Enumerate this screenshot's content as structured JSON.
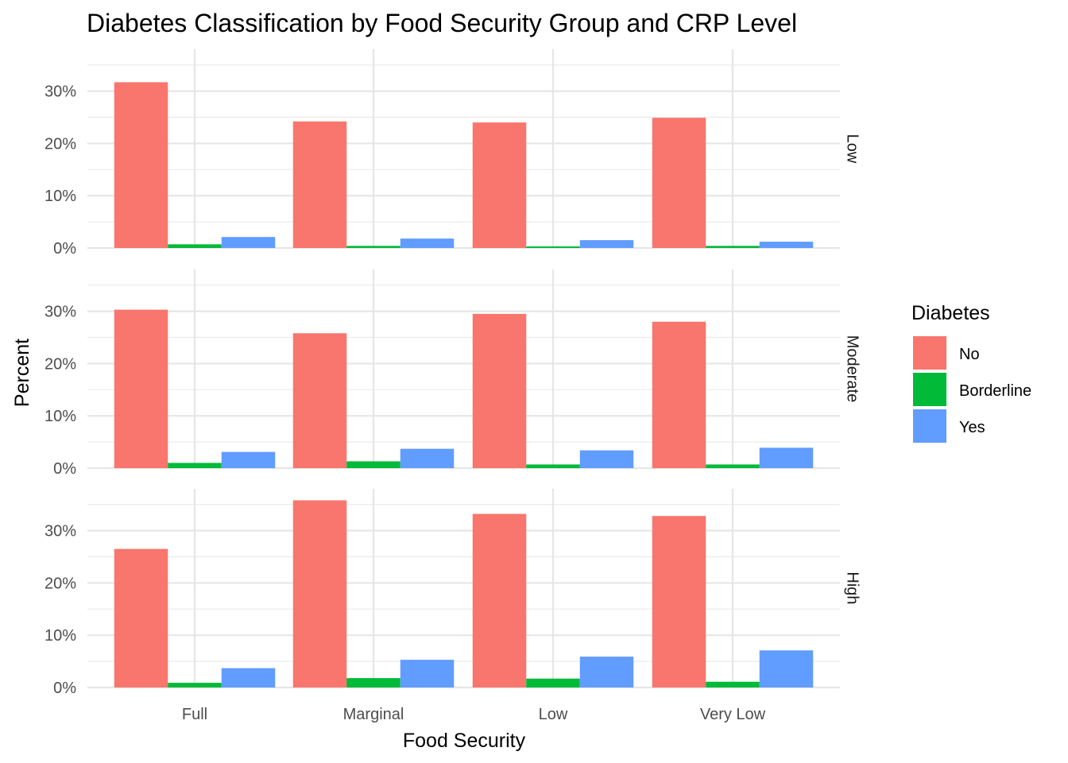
{
  "chart_data": {
    "type": "bar",
    "title": "Diabetes Classification by Food Security Group and CRP Level",
    "xlabel": "Food Security",
    "ylabel": "Percent",
    "categories": [
      "Full",
      "Marginal",
      "Low",
      "Very Low"
    ],
    "ylim": [
      0,
      38
    ],
    "yticks": [
      0,
      10,
      20,
      30
    ],
    "ytick_labels": [
      "0%",
      "10%",
      "20%",
      "30%"
    ],
    "grid": true,
    "legend": {
      "title": "Diabetes",
      "position": "right",
      "entries": [
        "No",
        "Borderline",
        "Yes"
      ]
    },
    "series_colors": {
      "No": "#F8766D",
      "Borderline": "#00BA38",
      "Yes": "#619CFF"
    },
    "panels": [
      {
        "label": "Low",
        "series": [
          {
            "name": "No",
            "values": [
              31.7,
              24.2,
              24.0,
              24.9
            ]
          },
          {
            "name": "Borderline",
            "values": [
              0.7,
              0.4,
              0.3,
              0.4
            ]
          },
          {
            "name": "Yes",
            "values": [
              2.1,
              1.8,
              1.5,
              1.2
            ]
          }
        ]
      },
      {
        "label": "Moderate",
        "series": [
          {
            "name": "No",
            "values": [
              30.3,
              25.8,
              29.5,
              28.0
            ]
          },
          {
            "name": "Borderline",
            "values": [
              1.0,
              1.3,
              0.7,
              0.7
            ]
          },
          {
            "name": "Yes",
            "values": [
              3.1,
              3.7,
              3.4,
              3.9
            ]
          }
        ]
      },
      {
        "label": "High",
        "series": [
          {
            "name": "No",
            "values": [
              26.5,
              35.8,
              33.2,
              32.8
            ]
          },
          {
            "name": "Borderline",
            "values": [
              0.9,
              1.8,
              1.7,
              1.1
            ]
          },
          {
            "name": "Yes",
            "values": [
              3.7,
              5.3,
              5.9,
              7.1
            ]
          }
        ]
      }
    ]
  }
}
